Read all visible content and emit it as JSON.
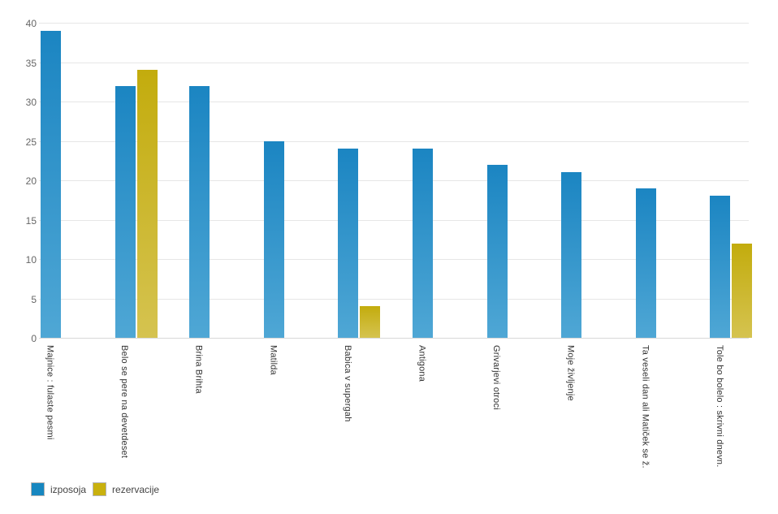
{
  "chart_data": {
    "type": "bar",
    "title": "",
    "xlabel": "",
    "ylabel": "",
    "ylim": [
      0,
      40
    ],
    "ytick_step": 5,
    "grid": "horizontal",
    "legend_position": "bottom-left",
    "background_color": "#ffffff",
    "gridline_color": "#e6e6e6",
    "categories": [
      "Majnice : fulaste pesmi",
      "Belo se pere na devetdeset",
      "Brina Brihta",
      "Matilda",
      "Babica v supergah",
      "Antigona",
      "Grivarjevi otroci",
      "Moje življenje",
      "Ta veseli dan ali Matiček se ž.",
      "Tole bo bolelo : skrivni dnevn."
    ],
    "series": [
      {
        "name": "izposoja",
        "legend_color": "#1787c0",
        "color_top": "#1b85c2",
        "color_bottom": "#4fa7d5",
        "values": [
          39,
          32,
          32,
          25,
          24,
          24,
          22,
          21,
          19,
          18
        ]
      },
      {
        "name": "rezervacije",
        "legend_color": "#c9b10e",
        "color_top": "#c3ac0d",
        "color_bottom": "#d5c350",
        "values": [
          0,
          34,
          0,
          0,
          4,
          0,
          0,
          0,
          0,
          12
        ]
      }
    ],
    "note_render_rule": "second-series bar drawn only where value > 0",
    "y_tick_labels": [
      "0",
      "5",
      "10",
      "15",
      "20",
      "25",
      "30",
      "35",
      "40"
    ]
  }
}
